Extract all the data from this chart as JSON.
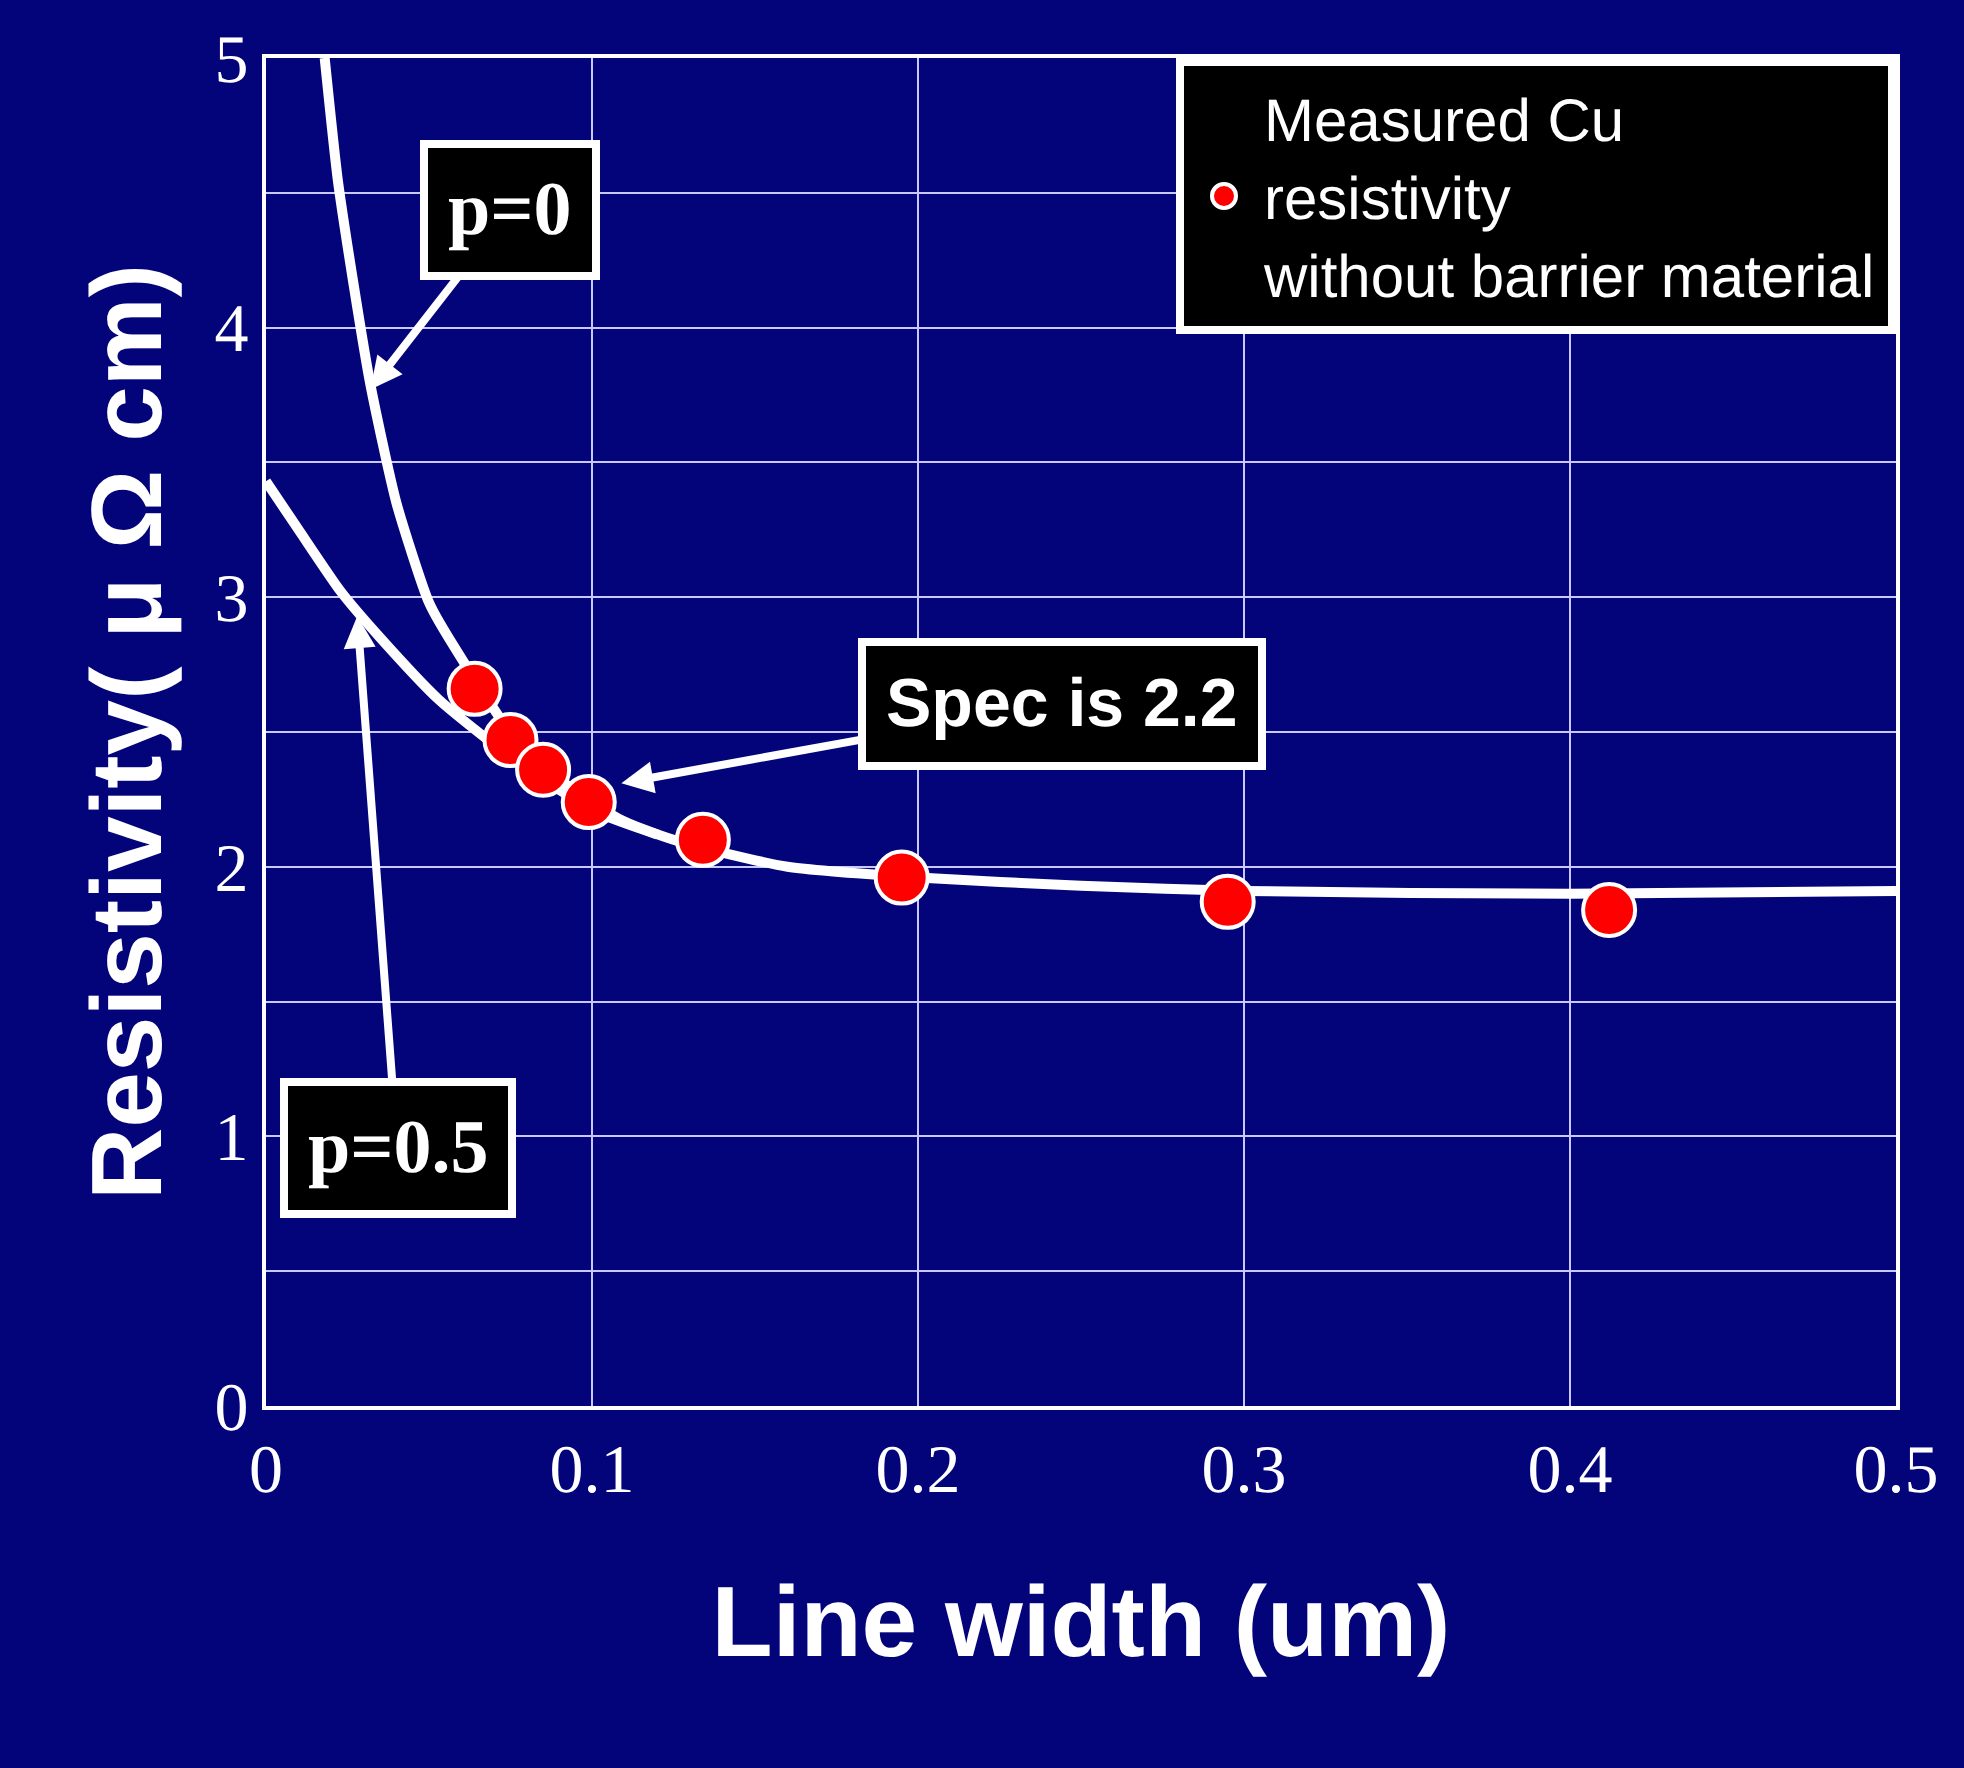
{
  "chart_data": {
    "type": "line",
    "xlabel": "Line width (um)",
    "ylabel": "Resistivity( μ Ω cm)",
    "xlim": [
      0,
      0.5
    ],
    "xticks": [
      0,
      0.1,
      0.2,
      0.3,
      0.4,
      0.5
    ],
    "ylim": [
      0,
      5
    ],
    "yticks": [
      0,
      {
        "value": 0.5,
        "label": null
      },
      1,
      {
        "value": 1.5,
        "label": null
      },
      2,
      {
        "value": 2.5,
        "label": null
      },
      3,
      {
        "value": 3.5,
        "label": null
      },
      4,
      {
        "value": 4.5,
        "label": null
      },
      5
    ],
    "grid": true,
    "legend": "top right",
    "line_style": "solid",
    "marker": "none",
    "series": [
      {
        "color": "#ffffff",
        "x": [
          0.018,
          0.022,
          0.027,
          0.032,
          0.04,
          0.05,
          0.056,
          0.08,
          0.108,
          0.125,
          0.16,
          0.2,
          0.25,
          0.3,
          0.4,
          0.5
        ],
        "values": [
          5,
          4.55,
          4.15,
          3.79,
          3.35,
          2.98,
          2.85,
          2.42,
          2.18,
          2.1,
          2.0,
          1.96,
          1.93,
          1.91,
          1.9,
          1.91
        ]
      },
      {
        "color": "#ffffff",
        "x": [
          0,
          0.01,
          0.023,
          0.035,
          0.053,
          0.078,
          0.102,
          0.12
        ],
        "values": [
          3.43,
          3.25,
          3.02,
          2.85,
          2.62,
          2.38,
          2.2,
          2.12
        ]
      },
      {
        "type": "scatter",
        "marker": "circle",
        "name": "Measured Cu\nresistivity\nwithout barrier material",
        "color": "#ff0000",
        "x": [
          0.064,
          0.075,
          0.085,
          0.099,
          0.134,
          0.195,
          0.295,
          0.412
        ],
        "values": [
          2.66,
          2.47,
          2.36,
          2.24,
          2.1,
          1.96,
          1.87,
          1.84
        ]
      }
    ],
    "annotations": [
      {
        "text": "p=0",
        "x": 0.032,
        "y": 3.77
      },
      {
        "text": "p=0.5",
        "x": 0.028,
        "y": 2.93
      },
      {
        "text": "Spec is 2.2",
        "x": 0.109,
        "y": 2.31
      }
    ]
  }
}
